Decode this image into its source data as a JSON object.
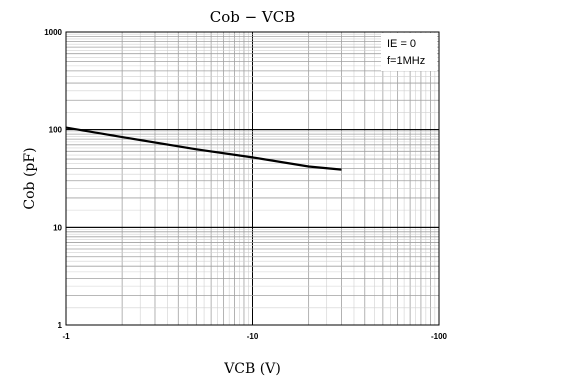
{
  "chart_data": {
    "type": "line",
    "title": "Cob − VCB",
    "xlabel": "VCB (V)",
    "ylabel": "Cob (pF)",
    "x_scale": "log",
    "y_scale": "log",
    "x_ticks": [
      {
        "value": -1,
        "label": "-1"
      },
      {
        "value": -10,
        "label": "-10"
      },
      {
        "value": -100,
        "label": "-100"
      }
    ],
    "y_ticks": [
      {
        "value": 1,
        "label": "1"
      },
      {
        "value": 10,
        "label": "10"
      },
      {
        "value": 100,
        "label": "100"
      },
      {
        "value": 1000,
        "label": "1000"
      }
    ],
    "xlim": [
      -1,
      -100
    ],
    "ylim": [
      1,
      1000
    ],
    "grid": true,
    "conditions": [
      "IE = 0",
      "f=1MHz"
    ],
    "conditions_placement": "top-right",
    "series": [
      {
        "x": [
          -1,
          -2,
          -5,
          -10,
          -20,
          -30
        ],
        "y": [
          105,
          84,
          63,
          52,
          42,
          39
        ]
      }
    ],
    "colors": {
      "line": "#000000",
      "grid": "#a0a0a0",
      "frame": "#000000"
    }
  }
}
